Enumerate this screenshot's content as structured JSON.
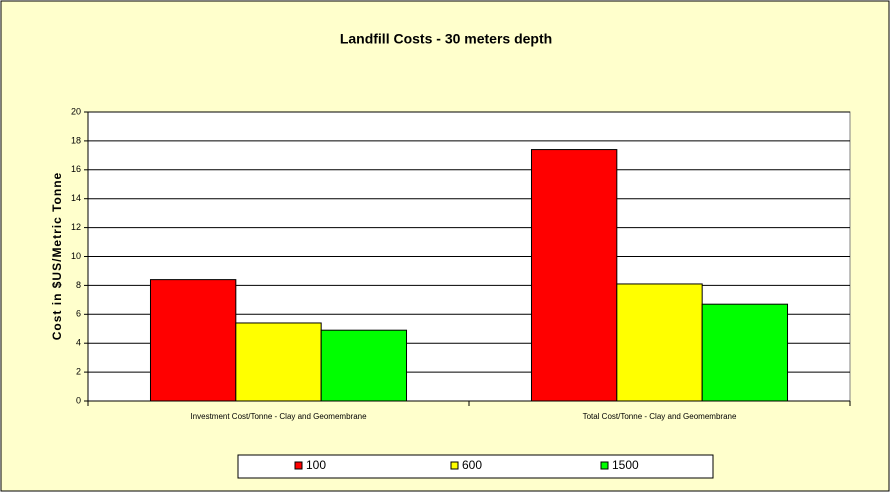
{
  "chart_data": {
    "type": "bar",
    "title": "Landfill Costs - 30 meters depth",
    "y_label": "Cost in $US/Metric Tonne",
    "categories": [
      "Investment Cost/Tonne - Clay and Geomembrane",
      "Total Cost/Tonne - Clay and Geomembrane"
    ],
    "series": [
      {
        "name": "100",
        "color": "#ff0000",
        "values": [
          8.4,
          17.4
        ]
      },
      {
        "name": "600",
        "color": "#ffff00",
        "values": [
          5.4,
          8.1
        ]
      },
      {
        "name": "1500",
        "color": "#00ff00",
        "values": [
          4.9,
          6.7
        ]
      }
    ],
    "ylim": [
      0,
      20
    ],
    "yticks": [
      0,
      2,
      4,
      6,
      8,
      10,
      12,
      14,
      16,
      18,
      20
    ],
    "grid": true,
    "legend": "bottom"
  }
}
